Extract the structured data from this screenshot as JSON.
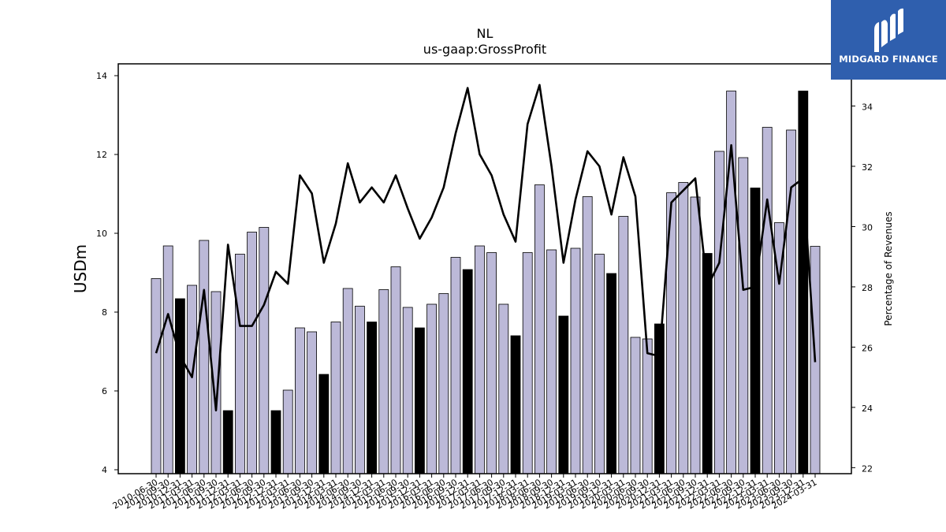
{
  "logo": {
    "text": "MIDGARD FINANCE"
  },
  "chart_data": {
    "type": "bar",
    "title": "NL",
    "subtitle": "us-gaap:GrossProfit",
    "ylabel": "USDm",
    "y2label": "Percentage of Revenues",
    "ylim": [
      3.9,
      14.3
    ],
    "y2lim": [
      21.8,
      35.4
    ],
    "yticks": [
      4,
      6,
      8,
      10,
      12,
      14
    ],
    "y2ticks": [
      22,
      24,
      26,
      28,
      30,
      32,
      34
    ],
    "grid": false,
    "colors": {
      "bar": "#bcb9d8",
      "bar_q4": "#000000",
      "line": "#000000",
      "edge": "#000000"
    },
    "categories": [
      "2010-06-30",
      "2010-09-30",
      "2010-12-31",
      "2011-03-31",
      "2011-06-30",
      "2011-09-30",
      "2011-12-31",
      "2012-03-31",
      "2012-06-30",
      "2012-09-30",
      "2012-12-31",
      "2013-03-31",
      "2013-06-30",
      "2013-09-30",
      "2013-12-31",
      "2014-03-31",
      "2014-06-30",
      "2014-09-30",
      "2014-12-31",
      "2015-03-31",
      "2015-06-30",
      "2015-09-30",
      "2015-12-31",
      "2016-03-31",
      "2016-06-30",
      "2016-09-30",
      "2016-12-31",
      "2017-03-31",
      "2017-06-30",
      "2017-09-30",
      "2017-12-31",
      "2018-03-31",
      "2018-06-30",
      "2018-09-30",
      "2018-12-31",
      "2019-03-31",
      "2019-06-30",
      "2019-09-30",
      "2019-12-31",
      "2020-03-31",
      "2020-06-30",
      "2020-09-30",
      "2020-12-31",
      "2021-03-31",
      "2021-06-30",
      "2021-09-30",
      "2021-12-31",
      "2022-03-31",
      "2022-06-30",
      "2022-09-30",
      "2022-12-31",
      "2023-03-31",
      "2023-06-30",
      "2023-09-30",
      "2023-12-31",
      "2024-03-31"
    ],
    "x_tick_labels": [
      "2010-06-30",
      "2010-09-30",
      "2010-12-31",
      "2011-03-31",
      "2011-06-30",
      "2011-09-30",
      "2011-12-31",
      "2012-03-31",
      "2012-06-30",
      "2012-09-30",
      "2012-12-31",
      "2013-03-31",
      "2013-06-30",
      "2013-09-30",
      "2013-12-31",
      "2014-03-31",
      "2014-06-30",
      "2014-09-30",
      "2014-12-31",
      "2015-03-31",
      "2015-06-30",
      "2015-09-30",
      "2015-12-31",
      "2016-03-31",
      "2016-06-30",
      "2016-09-30",
      "2016-12-31",
      "2017-03-31",
      "2017-06-30",
      "2017-09-30",
      "2017-12-31",
      "2018-03-31",
      "2018-06-30",
      "2018-09-30",
      "2018-12-31",
      "2019-03-31",
      "2019-06-30",
      "2019-09-30",
      "2019-12-31",
      "2020-03-31",
      "2020-06-30",
      "2020-09-30",
      "2020-12-31",
      "2021-03-31",
      "2021-06-30",
      "2021-09-30",
      "2021-12-31",
      "2022-03-31",
      "2022-06-30",
      "2022-09-30",
      "2022-12-31",
      "2023-03-31",
      "2023-06-30",
      "2023-09-30",
      "2023-12-31",
      "2024-03-31"
    ],
    "series": [
      {
        "type": "bar",
        "axis": "left",
        "values": [
          8.85,
          9.68,
          8.34,
          8.68,
          9.82,
          8.52,
          5.5,
          9.47,
          10.03,
          10.15,
          5.5,
          6.02,
          7.6,
          7.5,
          6.42,
          7.75,
          8.6,
          8.15,
          7.75,
          8.57,
          9.15,
          8.12,
          7.6,
          8.2,
          8.47,
          9.39,
          9.08,
          9.68,
          9.51,
          8.2,
          7.4,
          9.51,
          11.23,
          9.58,
          7.9,
          9.62,
          10.93,
          9.47,
          8.98,
          10.43,
          7.36,
          7.32,
          7.7,
          11.03,
          11.29,
          10.92,
          9.49,
          12.08,
          13.61,
          11.92,
          11.15,
          12.69,
          10.27,
          12.62,
          13.61,
          9.67
        ],
        "q4_flags": [
          0,
          0,
          1,
          0,
          0,
          0,
          1,
          0,
          0,
          0,
          1,
          0,
          0,
          0,
          1,
          0,
          0,
          0,
          1,
          0,
          0,
          0,
          1,
          0,
          0,
          0,
          1,
          0,
          0,
          0,
          1,
          0,
          0,
          0,
          1,
          0,
          0,
          0,
          1,
          0,
          0,
          0,
          1,
          0,
          0,
          0,
          1,
          0,
          0,
          0,
          1,
          0,
          0,
          0,
          1,
          0
        ]
      },
      {
        "type": "line",
        "axis": "right",
        "values": [
          25.8,
          27.1,
          25.7,
          25.0,
          27.9,
          23.9,
          29.4,
          26.7,
          26.7,
          27.4,
          28.5,
          28.1,
          31.7,
          31.1,
          28.8,
          30.1,
          32.1,
          30.8,
          31.3,
          30.8,
          31.7,
          30.6,
          29.6,
          30.3,
          31.3,
          33.1,
          34.6,
          32.4,
          31.7,
          30.4,
          29.5,
          33.4,
          34.7,
          32.0,
          28.8,
          30.9,
          32.5,
          32.0,
          30.4,
          32.3,
          31.0,
          25.8,
          25.7,
          30.8,
          31.2,
          31.6,
          28.0,
          28.8,
          32.7,
          27.9,
          28.0,
          30.9,
          28.1,
          31.3,
          31.6,
          25.5
        ]
      }
    ]
  }
}
